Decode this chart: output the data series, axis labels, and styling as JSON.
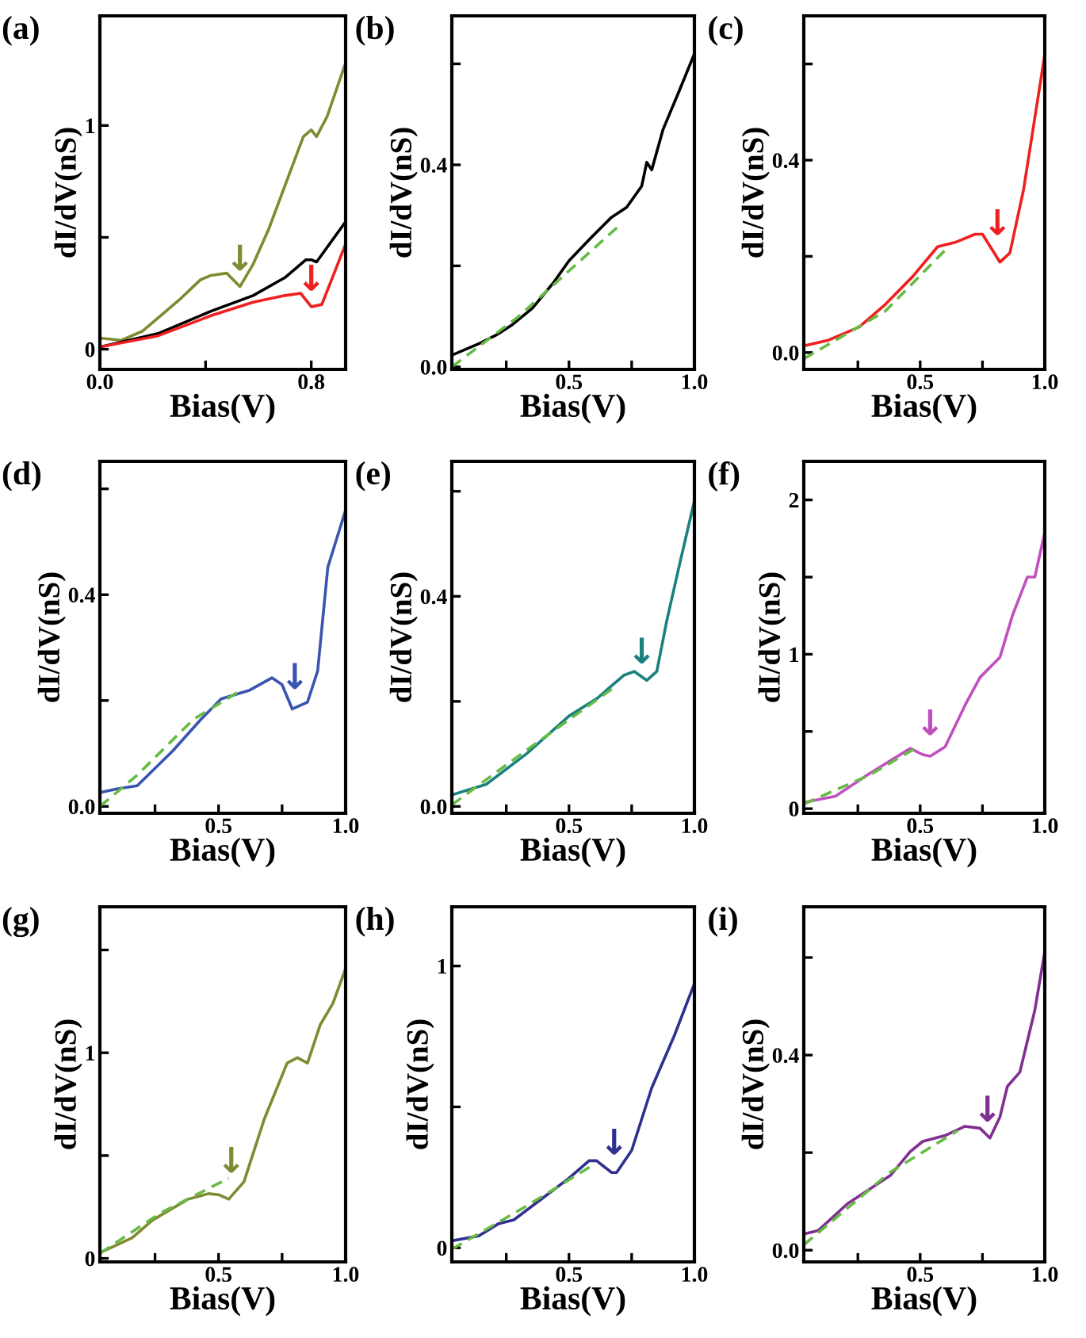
{
  "chart_data": [
    {
      "type": "line",
      "title": "(a)",
      "xlabel": "Bias(V)",
      "ylabel": "dI/dV(nS)",
      "xlim": [
        0,
        0.93
      ],
      "ylim": [
        -0.09,
        1.49
      ],
      "xticks": [
        {
          "value": 0,
          "label": "0.0"
        },
        {
          "value": 0.4,
          "label": null
        },
        {
          "value": 0.8,
          "label": "0.8"
        }
      ],
      "yticks": [
        {
          "value": 0,
          "label": "0"
        },
        {
          "value": 0.5,
          "label": null
        },
        {
          "value": 1,
          "label": "1"
        }
      ],
      "grid": false,
      "legend": false,
      "series": [
        {
          "color": "#808a30",
          "x": [
            0,
            0.08,
            0.16,
            0.22,
            0.3,
            0.38,
            0.42,
            0.48,
            0.53,
            0.58,
            0.64,
            0.7,
            0.77,
            0.8,
            0.82,
            0.86,
            0.93
          ],
          "values": [
            0.05,
            0.04,
            0.08,
            0.14,
            0.22,
            0.31,
            0.33,
            0.34,
            0.28,
            0.38,
            0.54,
            0.73,
            0.95,
            0.98,
            0.95,
            1.04,
            1.28
          ]
        },
        {
          "color": "#000000",
          "x": [
            0,
            0.22,
            0.42,
            0.58,
            0.7,
            0.78,
            0.8,
            0.82,
            0.93
          ],
          "values": [
            0.01,
            0.07,
            0.17,
            0.24,
            0.32,
            0.4,
            0.4,
            0.39,
            0.57
          ]
        },
        {
          "color": "#ee2020",
          "x": [
            0,
            0.22,
            0.42,
            0.58,
            0.7,
            0.76,
            0.8,
            0.84,
            0.93
          ],
          "values": [
            0.01,
            0.06,
            0.15,
            0.21,
            0.24,
            0.25,
            0.19,
            0.2,
            0.47
          ]
        }
      ],
      "annotations": [
        {
          "text": "↓",
          "x": 0.53,
          "y": 0.3
        },
        {
          "text": "↓",
          "x": 0.8,
          "y": 0.21
        }
      ]
    },
    {
      "type": "line",
      "title": "(b)",
      "xlabel": "Bias(V)",
      "ylabel": "dI/dV(nS)",
      "xlim": [
        0.033,
        1.0
      ],
      "ylim": [
        -0.005,
        0.695
      ],
      "xticks": [
        {
          "value": 0.25,
          "label": null
        },
        {
          "value": 0.5,
          "label": "0.5"
        },
        {
          "value": 0.75,
          "label": null
        },
        {
          "value": 1,
          "label": "1.0"
        }
      ],
      "yticks": [
        {
          "value": 0,
          "label": "0.0"
        },
        {
          "value": 0.2,
          "label": null
        },
        {
          "value": 0.4,
          "label": "0.4"
        },
        {
          "value": 0.6,
          "label": null
        }
      ],
      "grid": false,
      "legend": false,
      "series": [
        {
          "color": "#000000",
          "x": [
            0.033,
            0.146,
            0.21,
            0.27,
            0.354,
            0.44,
            0.5,
            0.583,
            0.667,
            0.73,
            0.79,
            0.81,
            0.83,
            0.875,
            0.94,
            1.0
          ],
          "values": [
            0.023,
            0.047,
            0.063,
            0.082,
            0.116,
            0.168,
            0.21,
            0.253,
            0.295,
            0.316,
            0.358,
            0.405,
            0.39,
            0.47,
            0.547,
            0.62
          ]
        },
        {
          "color": "#66bb44",
          "line_style": "dashed",
          "x": [
            0.033,
            0.3,
            0.5,
            0.71
          ],
          "values": [
            0.0,
            0.1,
            0.19,
            0.284
          ]
        }
      ]
    },
    {
      "type": "line",
      "title": "(c)",
      "xlabel": "Bias(V)",
      "ylabel": "dI/dV(nS)",
      "xlim": [
        0.033,
        1.0
      ],
      "ylim": [
        -0.035,
        0.7
      ],
      "xticks": [
        {
          "value": 0.25,
          "label": null
        },
        {
          "value": 0.5,
          "label": "0.5"
        },
        {
          "value": 0.75,
          "label": null
        },
        {
          "value": 1,
          "label": "1.0"
        }
      ],
      "yticks": [
        {
          "value": 0,
          "label": "0.0"
        },
        {
          "value": 0.2,
          "label": null
        },
        {
          "value": 0.4,
          "label": "0.4"
        },
        {
          "value": 0.6,
          "label": null
        }
      ],
      "grid": false,
      "legend": false,
      "series": [
        {
          "color": "#ee2020",
          "x": [
            0.033,
            0.128,
            0.255,
            0.36,
            0.47,
            0.57,
            0.64,
            0.72,
            0.75,
            0.79,
            0.82,
            0.86,
            0.915,
            1.0
          ],
          "values": [
            0.014,
            0.025,
            0.053,
            0.1,
            0.158,
            0.22,
            0.229,
            0.246,
            0.246,
            0.213,
            0.188,
            0.207,
            0.339,
            0.62
          ]
        },
        {
          "color": "#66bb44",
          "line_style": "dashed",
          "x": [
            0.033,
            0.36,
            0.6
          ],
          "values": [
            -0.013,
            0.086,
            0.213
          ]
        }
      ],
      "annotations": [
        {
          "text": "↓",
          "x": 0.81,
          "y": 0.22
        }
      ]
    },
    {
      "type": "line",
      "title": "(d)",
      "xlabel": "Bias(V)",
      "ylabel": "dI/dV(nS)",
      "xlim": [
        0.033,
        1.0
      ],
      "ylim": [
        -0.013,
        0.652
      ],
      "xticks": [
        {
          "value": 0.25,
          "label": null
        },
        {
          "value": 0.5,
          "label": "0.5"
        },
        {
          "value": 0.75,
          "label": null
        },
        {
          "value": 1,
          "label": "1.0"
        }
      ],
      "yticks": [
        {
          "value": 0,
          "label": "0.0"
        },
        {
          "value": 0.2,
          "label": null
        },
        {
          "value": 0.4,
          "label": "0.4"
        },
        {
          "value": 0.6,
          "label": null
        }
      ],
      "grid": false,
      "legend": false,
      "series": [
        {
          "color": "#3a55b0",
          "x": [
            0.033,
            0.1,
            0.18,
            0.32,
            0.43,
            0.51,
            0.62,
            0.71,
            0.75,
            0.79,
            0.85,
            0.89,
            0.93,
            1.0
          ],
          "values": [
            0.026,
            0.033,
            0.039,
            0.105,
            0.164,
            0.203,
            0.219,
            0.243,
            0.23,
            0.184,
            0.197,
            0.256,
            0.452,
            0.56
          ]
        },
        {
          "color": "#66bb44",
          "line_style": "dashed",
          "x": [
            0.033,
            0.18,
            0.4,
            0.59
          ],
          "values": [
            0.0,
            0.059,
            0.164,
            0.22
          ]
        }
      ],
      "annotations": [
        {
          "text": "↓",
          "x": 0.8,
          "y": 0.2
        }
      ]
    },
    {
      "type": "line",
      "title": "(e)",
      "xlabel": "Bias(V)",
      "ylabel": "dI/dV(nS)",
      "xlim": [
        0.033,
        1.0
      ],
      "ylim": [
        -0.013,
        0.657
      ],
      "xticks": [
        {
          "value": 0.25,
          "label": null
        },
        {
          "value": 0.5,
          "label": "0.5"
        },
        {
          "value": 0.75,
          "label": null
        },
        {
          "value": 1,
          "label": "1.0"
        }
      ],
      "yticks": [
        {
          "value": 0,
          "label": "0.0"
        },
        {
          "value": 0.2,
          "label": null
        },
        {
          "value": 0.4,
          "label": "0.4"
        },
        {
          "value": 0.6,
          "label": null
        }
      ],
      "grid": false,
      "legend": false,
      "series": [
        {
          "color": "#1a8080",
          "x": [
            0.033,
            0.17,
            0.33,
            0.5,
            0.61,
            0.72,
            0.76,
            0.81,
            0.85,
            0.89,
            0.94,
            1.0
          ],
          "values": [
            0.022,
            0.042,
            0.1,
            0.172,
            0.205,
            0.25,
            0.257,
            0.24,
            0.257,
            0.354,
            0.459,
            0.582
          ]
        },
        {
          "color": "#66bb44",
          "line_style": "dashed",
          "x": [
            0.033,
            0.33,
            0.69
          ],
          "values": [
            0.003,
            0.107,
            0.23
          ]
        }
      ],
      "annotations": [
        {
          "text": "↓",
          "x": 0.79,
          "y": 0.25
        }
      ]
    },
    {
      "type": "line",
      "title": "(f)",
      "xlabel": "Bias(V)",
      "ylabel": "dI/dV(nS)",
      "xlim": [
        0.033,
        1.0
      ],
      "ylim": [
        -0.03,
        2.25
      ],
      "xticks": [
        {
          "value": 0.25,
          "label": null
        },
        {
          "value": 0.5,
          "label": "0.5"
        },
        {
          "value": 0.75,
          "label": null
        },
        {
          "value": 1,
          "label": "1.0"
        }
      ],
      "yticks": [
        {
          "value": 0,
          "label": "0"
        },
        {
          "value": 0.5,
          "label": null
        },
        {
          "value": 1,
          "label": "1"
        },
        {
          "value": 1.5,
          "label": null
        },
        {
          "value": 2,
          "label": "2"
        }
      ],
      "grid": false,
      "legend": false,
      "series": [
        {
          "color": "#c050c0",
          "x": [
            0.033,
            0.16,
            0.29,
            0.4,
            0.46,
            0.51,
            0.54,
            0.6,
            0.68,
            0.74,
            0.82,
            0.87,
            0.93,
            0.96,
            1.0
          ],
          "values": [
            0.04,
            0.08,
            0.22,
            0.33,
            0.39,
            0.35,
            0.34,
            0.4,
            0.67,
            0.85,
            0.98,
            1.25,
            1.5,
            1.5,
            1.79
          ]
        },
        {
          "color": "#66bb44",
          "line_style": "dashed",
          "x": [
            0.033,
            0.3,
            0.49
          ],
          "values": [
            0.03,
            0.22,
            0.4
          ]
        }
      ],
      "annotations": [
        {
          "text": "↓",
          "x": 0.54,
          "y": 0.4
        }
      ]
    },
    {
      "type": "line",
      "title": "(g)",
      "xlabel": "Bias(V)",
      "ylabel": "dI/dV(nS)",
      "xlim": [
        0.033,
        1.0
      ],
      "ylim": [
        -0.017,
        1.71
      ],
      "xticks": [
        {
          "value": 0.25,
          "label": null
        },
        {
          "value": 0.5,
          "label": "0.5"
        },
        {
          "value": 0.75,
          "label": null
        },
        {
          "value": 1,
          "label": "1.0"
        }
      ],
      "yticks": [
        {
          "value": 0,
          "label": "0"
        },
        {
          "value": 0.5,
          "label": null
        },
        {
          "value": 1,
          "label": "1"
        },
        {
          "value": 1.5,
          "label": null
        }
      ],
      "grid": false,
      "legend": false,
      "series": [
        {
          "color": "#808a30",
          "x": [
            0.033,
            0.16,
            0.24,
            0.38,
            0.46,
            0.5,
            0.54,
            0.6,
            0.68,
            0.77,
            0.81,
            0.85,
            0.9,
            0.95,
            1.0
          ],
          "values": [
            0.027,
            0.1,
            0.186,
            0.288,
            0.315,
            0.31,
            0.288,
            0.373,
            0.678,
            0.95,
            0.976,
            0.95,
            1.136,
            1.24,
            1.41
          ]
        },
        {
          "color": "#66bb44",
          "line_style": "dashed",
          "x": [
            0.033,
            0.27,
            0.54
          ],
          "values": [
            0.024,
            0.22,
            0.39
          ]
        }
      ],
      "annotations": [
        {
          "text": "↓",
          "x": 0.55,
          "y": 0.36
        }
      ]
    },
    {
      "type": "line",
      "title": "(h)",
      "xlabel": "Bias(V)",
      "ylabel": "dI/dV(nS)",
      "xlim": [
        0.033,
        1.0
      ],
      "ylim": [
        -0.05,
        1.21
      ],
      "xticks": [
        {
          "value": 0.25,
          "label": null
        },
        {
          "value": 0.5,
          "label": "0.5"
        },
        {
          "value": 0.75,
          "label": null
        },
        {
          "value": 1,
          "label": "1.0"
        }
      ],
      "yticks": [
        {
          "value": 0,
          "label": "0"
        },
        {
          "value": 0.5,
          "label": null
        },
        {
          "value": 1,
          "label": "1"
        }
      ],
      "grid": false,
      "legend": false,
      "series": [
        {
          "color": "#303090",
          "x": [
            0.033,
            0.14,
            0.22,
            0.28,
            0.39,
            0.5,
            0.58,
            0.61,
            0.67,
            0.69,
            0.75,
            0.83,
            0.92,
            1.0
          ],
          "values": [
            0.025,
            0.042,
            0.086,
            0.099,
            0.173,
            0.247,
            0.309,
            0.309,
            0.267,
            0.267,
            0.346,
            0.568,
            0.753,
            0.938
          ]
        },
        {
          "color": "#66bb44",
          "line_style": "dashed",
          "x": [
            0.033,
            0.33,
            0.6
          ],
          "values": [
            -0.005,
            0.148,
            0.296
          ]
        }
      ],
      "annotations": [
        {
          "text": "↓",
          "x": 0.68,
          "y": 0.29
        }
      ]
    },
    {
      "type": "line",
      "title": "(i)",
      "xlabel": "Bias(V)",
      "ylabel": "dI/dV(nS)",
      "xlim": [
        0.033,
        1.0
      ],
      "ylim": [
        -0.024,
        0.704
      ],
      "xticks": [
        {
          "value": 0.25,
          "label": null
        },
        {
          "value": 0.5,
          "label": "0.5"
        },
        {
          "value": 0.75,
          "label": null
        },
        {
          "value": 1,
          "label": "1.0"
        }
      ],
      "yticks": [
        {
          "value": 0,
          "label": "0.0"
        },
        {
          "value": 0.2,
          "label": null
        },
        {
          "value": 0.4,
          "label": "0.4"
        },
        {
          "value": 0.6,
          "label": null
        }
      ],
      "grid": false,
      "legend": false,
      "series": [
        {
          "color": "#803090",
          "x": [
            0.033,
            0.09,
            0.21,
            0.38,
            0.46,
            0.51,
            0.6,
            0.68,
            0.74,
            0.78,
            0.82,
            0.85,
            0.9,
            0.96,
            1.0
          ],
          "values": [
            0.033,
            0.04,
            0.096,
            0.153,
            0.202,
            0.223,
            0.235,
            0.254,
            0.25,
            0.23,
            0.273,
            0.336,
            0.365,
            0.492,
            0.612
          ]
        },
        {
          "color": "#66bb44",
          "line_style": "dashed",
          "x": [
            0.033,
            0.38,
            0.65
          ],
          "values": [
            0.011,
            0.16,
            0.245
          ]
        }
      ],
      "annotations": [
        {
          "text": "↓",
          "x": 0.77,
          "y": 0.24
        }
      ]
    }
  ]
}
